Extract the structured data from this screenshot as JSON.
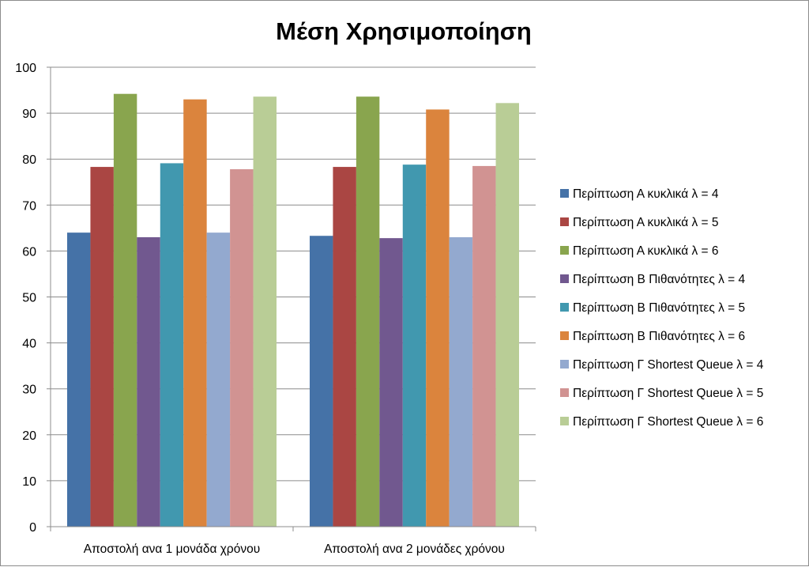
{
  "chart_data": {
    "type": "bar",
    "title": "Μέση Χρησιμοποίηση",
    "xlabel": "",
    "ylabel": "",
    "ylim": [
      0,
      100
    ],
    "yticks": [
      0,
      10,
      20,
      30,
      40,
      50,
      60,
      70,
      80,
      90,
      100
    ],
    "grid": true,
    "legend_position": "right",
    "categories": [
      "Αποστολή ανα 1 μονάδα χρόνου",
      "Αποστολή ανα 2 μονάδες χρόνου"
    ],
    "series": [
      {
        "name": "Περίπτωση Α κυκλικά λ = 4",
        "color": "#4572A7",
        "values": [
          64.0,
          63.3
        ]
      },
      {
        "name": "Περίπτωση Α κυκλικά λ = 5",
        "color": "#AA4643",
        "values": [
          78.3,
          78.3
        ]
      },
      {
        "name": "Περίπτωση Α κυκλικά λ = 6",
        "color": "#89A54E",
        "values": [
          94.2,
          93.6
        ]
      },
      {
        "name": "Περίπτωση Β Πιθανότητες λ = 4",
        "color": "#71588F",
        "values": [
          63.0,
          62.8
        ]
      },
      {
        "name": "Περίπτωση Β Πιθανότητες λ = 5",
        "color": "#4198AF",
        "values": [
          79.1,
          78.8
        ]
      },
      {
        "name": "Περίπτωση Β Πιθανότητες λ = 6",
        "color": "#DB843D",
        "values": [
          93.0,
          90.8
        ]
      },
      {
        "name": "Περίπτωση Γ  Shortest Queue λ = 4",
        "color": "#93A9CF",
        "values": [
          64.0,
          63.0
        ]
      },
      {
        "name": "Περίπτωση Γ  Shortest Queue λ = 5",
        "color": "#D19392",
        "values": [
          77.8,
          78.5
        ]
      },
      {
        "name": "Περίπτωση Γ  Shortest Queue λ = 6",
        "color": "#B9CD96",
        "values": [
          93.6,
          92.2
        ]
      }
    ]
  }
}
